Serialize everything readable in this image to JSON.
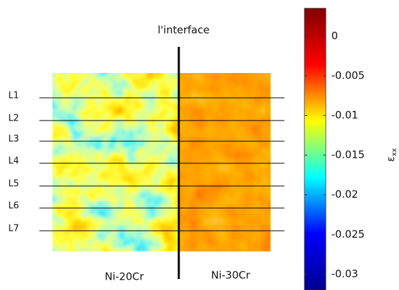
{
  "figure": {
    "annotation": "l'interface",
    "regions": [
      "Ni-20Cr",
      "Ni-30Cr"
    ],
    "lines": [
      "L1",
      "L2",
      "L3",
      "L4",
      "L5",
      "L6",
      "L7"
    ],
    "colorbar": {
      "label": {
        "symbol": "ε",
        "subscript": "xx"
      },
      "clim": [
        -0.032,
        0.0035
      ],
      "ticks": [
        0,
        -0.005,
        -0.01,
        -0.015,
        -0.02,
        -0.025,
        -0.03
      ],
      "colormap": [
        "#00008f",
        "#0000ff",
        "#00ffff",
        "#ffff00",
        "#ff0000",
        "#800000"
      ]
    }
  }
}
